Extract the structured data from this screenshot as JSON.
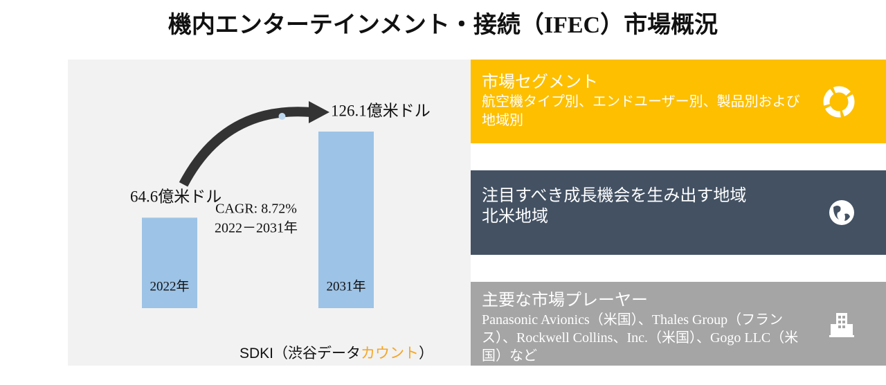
{
  "title": "機内エンターテインメント・接続（IFEC）市場概況",
  "chart_data": {
    "type": "bar",
    "categories": [
      "2022年",
      "2031年"
    ],
    "values": [
      64.6,
      126.1
    ],
    "value_labels": [
      "64.6億米ドル",
      "126.1億米ドル"
    ],
    "color": "#9DC3E6"
  },
  "cagr": {
    "label": "CAGR: 8.72%",
    "period": "2022－2031年"
  },
  "source": {
    "prefix": "SDKI（渋谷データ",
    "highlight": "カウント",
    "suffix": "）"
  },
  "panels": [
    {
      "title": "市場セグメント",
      "body": "航空機タイプ別、エンドユーザー別、製品別および地域別"
    },
    {
      "title": "注目すべき成長機会を生み出す地域",
      "body": "北米地域"
    },
    {
      "title": "主要な市場プレーヤー",
      "body": "Panasonic Avionics（米国）、Thales Group（フランス）、Rockwell Collins、Inc.（米国）、Gogo LLC（米国）など"
    }
  ]
}
